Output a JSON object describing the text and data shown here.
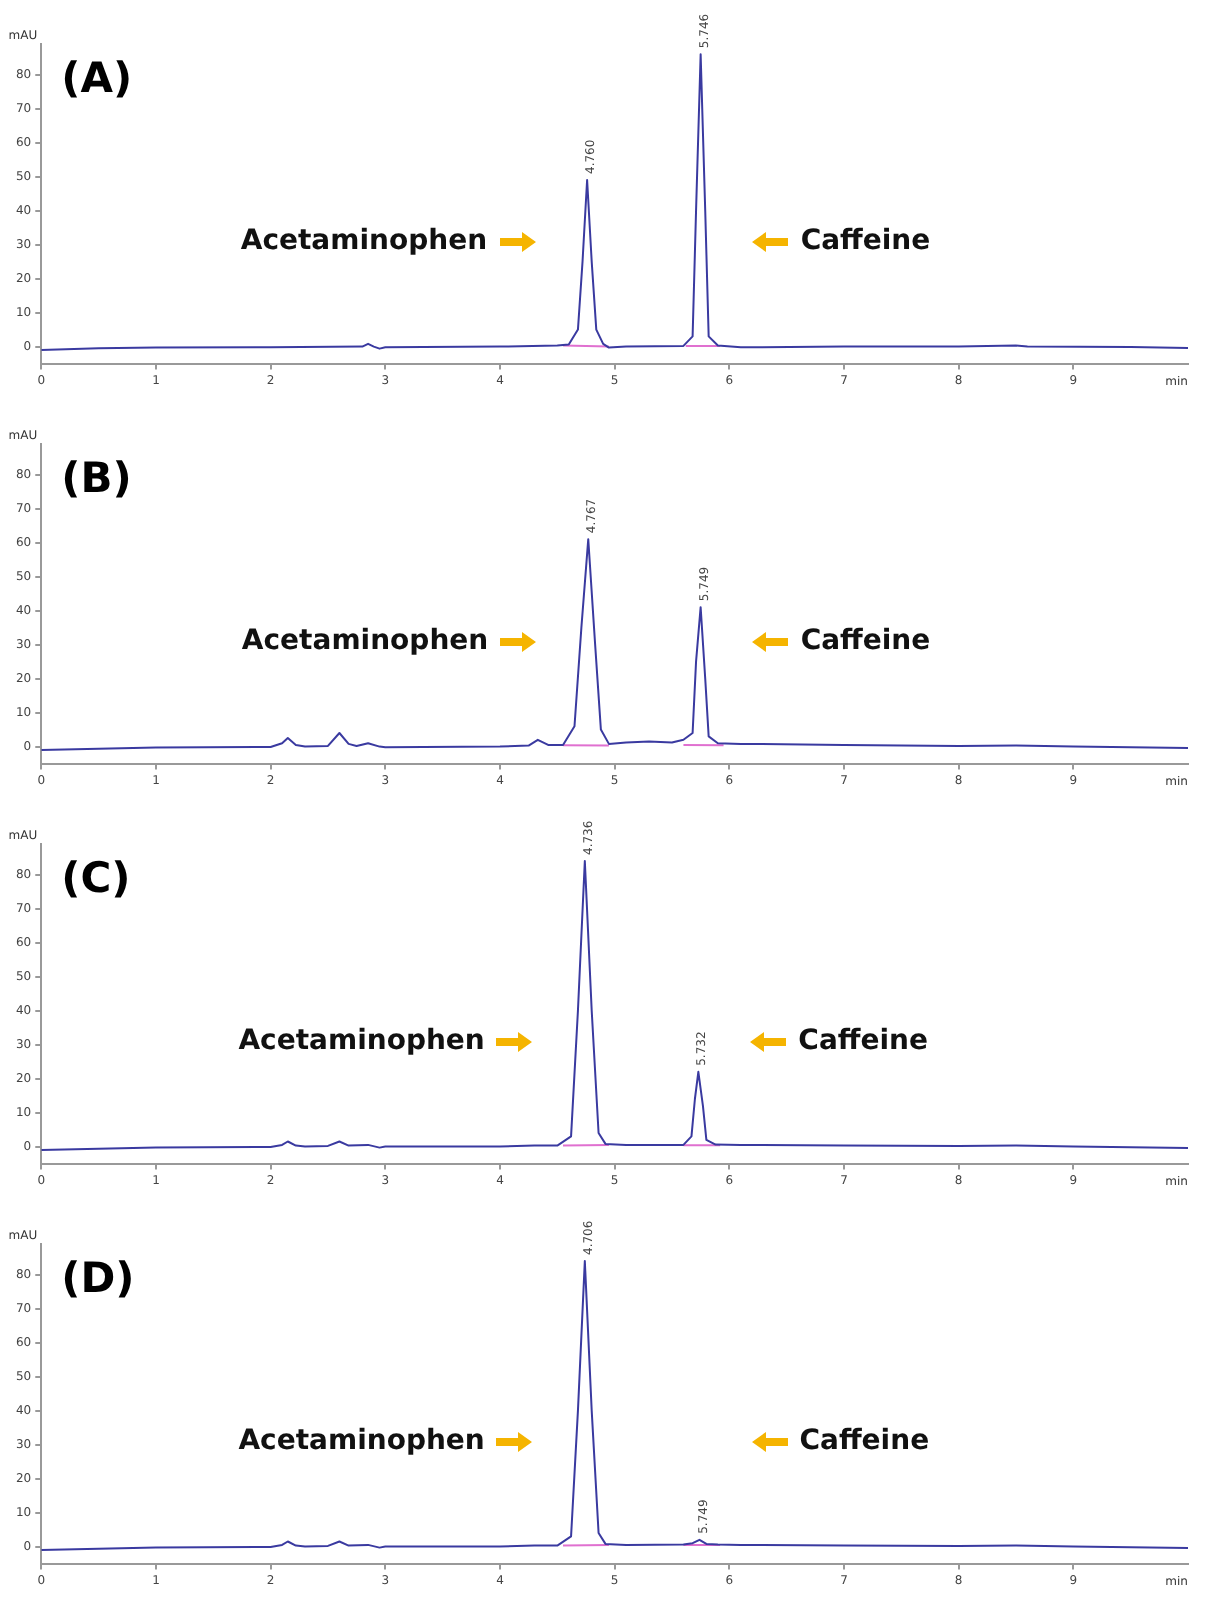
{
  "chart_data": [
    {
      "type": "line",
      "title": "(A)",
      "xlabel": "min",
      "ylabel": "mAU",
      "xlim": [
        0,
        10
      ],
      "xticks": [
        0,
        1,
        2,
        3,
        4,
        5,
        6,
        7,
        8,
        9
      ],
      "ylim": [
        -5,
        89
      ],
      "yticks": [
        0,
        10,
        20,
        30,
        40,
        50,
        60,
        70,
        80
      ],
      "grid": false,
      "legend": false,
      "series": [
        {
          "color": "#3a3aa0",
          "x": [
            0,
            0.5,
            1,
            2,
            2.8,
            2.85,
            2.9,
            2.95,
            3,
            4,
            4.5,
            4.6,
            4.68,
            4.72,
            4.76,
            4.8,
            4.84,
            4.9,
            4.95,
            5.1,
            5.6,
            5.68,
            5.71,
            5.75,
            5.79,
            5.82,
            5.9,
            6.1,
            7,
            8,
            8.5,
            8.6,
            9.5,
            10
          ],
          "values": [
            -1,
            -0.5,
            -0.3,
            -0.2,
            0,
            0.8,
            0,
            -0.6,
            -0.2,
            0,
            0.3,
            0.6,
            5,
            25,
            49,
            25,
            5,
            0.8,
            -0.3,
            0,
            0.2,
            3,
            40,
            86,
            40,
            3,
            0.3,
            -0.2,
            0,
            0,
            0.3,
            0,
            -0.1,
            -0.4
          ]
        },
        {
          "color": "#e070d0",
          "x": [
            4.55,
            4.95,
            4.96,
            5.62,
            5.92
          ],
          "values": [
            0.3,
            0,
            null,
            0.2,
            0.2
          ]
        }
      ],
      "annotations": [
        "Acetaminophen",
        "Caffeine",
        {
          "text": "4.760",
          "x": 4.76,
          "y": 49
        },
        {
          "text": "5.746",
          "x": 5.75,
          "y": 86
        }
      ]
    },
    {
      "type": "line",
      "title": "(B)",
      "xlabel": "min",
      "ylabel": "mAU",
      "xlim": [
        0,
        10
      ],
      "xticks": [
        0,
        1,
        2,
        3,
        4,
        5,
        6,
        7,
        8,
        9
      ],
      "ylim": [
        -5,
        89
      ],
      "yticks": [
        0,
        10,
        20,
        30,
        40,
        50,
        60,
        70,
        80
      ],
      "grid": false,
      "legend": false,
      "series": [
        {
          "color": "#3a3aa0",
          "x": [
            0,
            0.5,
            1,
            2,
            2.1,
            2.15,
            2.22,
            2.3,
            2.5,
            2.6,
            2.68,
            2.75,
            2.85,
            2.95,
            3,
            4,
            4.25,
            4.33,
            4.42,
            4.55,
            4.65,
            4.71,
            4.77,
            4.83,
            4.88,
            4.95,
            5.1,
            5.3,
            5.5,
            5.6,
            5.68,
            5.71,
            5.75,
            5.79,
            5.82,
            5.9,
            6.1,
            7,
            8,
            8.5,
            9,
            10
          ],
          "values": [
            -1,
            -0.6,
            -0.3,
            -0.1,
            1,
            2.5,
            0.5,
            0,
            0.2,
            4,
            0.8,
            0.2,
            1,
            0,
            -0.2,
            0,
            0.3,
            2,
            0.5,
            0.5,
            6,
            35,
            61,
            30,
            5,
            0.8,
            1.2,
            1.5,
            1.2,
            2,
            4,
            25,
            41,
            20,
            3,
            1,
            0.8,
            0.5,
            0.2,
            0.3,
            0,
            -0.4
          ]
        },
        {
          "color": "#e070d0",
          "x": [
            4.55,
            4.95,
            5.0,
            5.6,
            5.95
          ],
          "values": [
            0.4,
            0.3,
            null,
            0.5,
            0.4
          ]
        }
      ],
      "annotations": [
        "Acetaminophen",
        "Caffeine",
        {
          "text": "4.767",
          "x": 4.77,
          "y": 61
        },
        {
          "text": "5.749",
          "x": 5.75,
          "y": 41
        }
      ]
    },
    {
      "type": "line",
      "title": "(C)",
      "xlabel": "min",
      "ylabel": "mAU",
      "xlim": [
        0,
        10
      ],
      "xticks": [
        0,
        1,
        2,
        3,
        4,
        5,
        6,
        7,
        8,
        9
      ],
      "ylim": [
        -5,
        89
      ],
      "yticks": [
        0,
        10,
        20,
        30,
        40,
        50,
        60,
        70,
        80
      ],
      "grid": false,
      "legend": false,
      "series": [
        {
          "color": "#3a3aa0",
          "x": [
            0,
            0.5,
            1,
            2,
            2.1,
            2.15,
            2.22,
            2.3,
            2.5,
            2.6,
            2.68,
            2.85,
            2.95,
            3,
            4,
            4.3,
            4.5,
            4.62,
            4.68,
            4.74,
            4.8,
            4.86,
            4.92,
            5.1,
            5.6,
            5.67,
            5.7,
            5.73,
            5.77,
            5.8,
            5.88,
            6.1,
            7,
            8,
            8.5,
            9,
            10
          ],
          "values": [
            -1,
            -0.6,
            -0.3,
            -0.1,
            0.5,
            1.5,
            0.3,
            0,
            0.2,
            1.5,
            0.3,
            0.5,
            -0.3,
            0,
            0,
            0.3,
            0.3,
            3,
            40,
            84,
            40,
            4,
            0.8,
            0.5,
            0.5,
            3,
            14,
            22,
            12,
            2,
            0.6,
            0.5,
            0.3,
            0.2,
            0.3,
            0,
            -0.4
          ]
        },
        {
          "color": "#e070d0",
          "x": [
            4.55,
            4.95,
            5.0,
            5.6,
            5.92
          ],
          "values": [
            0.3,
            0.5,
            null,
            0.4,
            0.4
          ]
        }
      ],
      "annotations": [
        "Acetaminophen",
        "Caffeine",
        {
          "text": "4.736",
          "x": 4.74,
          "y": 84
        },
        {
          "text": "5.732",
          "x": 5.73,
          "y": 22
        }
      ]
    },
    {
      "type": "line",
      "title": "(D)",
      "xlabel": "min",
      "ylabel": "mAU",
      "xlim": [
        0,
        10
      ],
      "xticks": [
        0,
        1,
        2,
        3,
        4,
        5,
        6,
        7,
        8,
        9
      ],
      "ylim": [
        -5,
        89
      ],
      "yticks": [
        0,
        10,
        20,
        30,
        40,
        50,
        60,
        70,
        80
      ],
      "grid": false,
      "legend": false,
      "series": [
        {
          "color": "#3a3aa0",
          "x": [
            0,
            0.5,
            1,
            2,
            2.1,
            2.15,
            2.22,
            2.3,
            2.5,
            2.6,
            2.68,
            2.85,
            2.95,
            3,
            4,
            4.3,
            4.5,
            4.62,
            4.68,
            4.74,
            4.8,
            4.86,
            4.92,
            5.1,
            5.6,
            5.68,
            5.74,
            5.8,
            5.9,
            6.1,
            7,
            8,
            8.5,
            9,
            10
          ],
          "values": [
            -1,
            -0.6,
            -0.3,
            -0.1,
            0.5,
            1.5,
            0.3,
            0,
            0.2,
            1.5,
            0.3,
            0.5,
            -0.3,
            0,
            0,
            0.3,
            0.3,
            3,
            40,
            84,
            40,
            4,
            0.8,
            0.5,
            0.6,
            1,
            2,
            0.8,
            0.6,
            0.5,
            0.3,
            0.2,
            0.3,
            0,
            -0.4
          ]
        },
        {
          "color": "#e070d0",
          "x": [
            4.55,
            4.95,
            5.0,
            5.6,
            5.92
          ],
          "values": [
            0.3,
            0.5,
            null,
            0.5,
            0.5
          ]
        }
      ],
      "annotations": [
        "Acetaminophen",
        "Caffeine",
        {
          "text": "4.706",
          "x": 4.74,
          "y": 84
        },
        {
          "text": "5.749",
          "x": 5.74,
          "y": 2
        }
      ]
    }
  ]
}
